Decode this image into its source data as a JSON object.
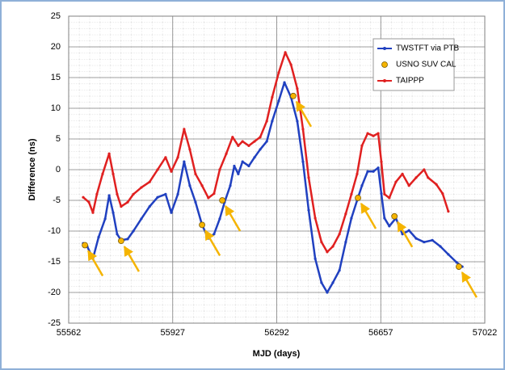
{
  "chart_data": {
    "type": "line",
    "xlabel": "MJD (days)",
    "ylabel": "Difference (ns)",
    "xlim": [
      55562,
      57022
    ],
    "xticks": [
      55562,
      55927,
      56292,
      56657,
      57022
    ],
    "ylim": [
      -25,
      25
    ],
    "yticks": [
      -25,
      -20,
      -15,
      -10,
      -5,
      0,
      5,
      10,
      15,
      20,
      25
    ],
    "grid": true,
    "legend": "upper right",
    "series": [
      {
        "name": "TWSTFT via PTB",
        "color": "#2040c0",
        "style": "line",
        "x": [
          55613,
          55627,
          55647,
          55667,
          55690,
          55704,
          55718,
          55732,
          55746,
          55769,
          55789,
          55817,
          55846,
          55874,
          55902,
          55922,
          55945,
          55967,
          55987,
          56007,
          56030,
          56052,
          56072,
          56092,
          56109,
          56129,
          56143,
          56157,
          56172,
          56194,
          56214,
          56234,
          56257,
          56276,
          56299,
          56319,
          56342,
          56364,
          56384,
          56404,
          56427,
          56449,
          56469,
          56489,
          56512,
          56534,
          56554,
          56574,
          56591,
          56611,
          56631,
          56648,
          56659,
          56670,
          56687,
          56710,
          56733,
          56756,
          56781,
          56809,
          56838,
          56866,
          56894,
          56923,
          56943
        ],
        "values": [
          -12,
          -12.5,
          -14.5,
          -11,
          -8,
          -4.2,
          -7,
          -10.5,
          -11.5,
          -11.3,
          -10,
          -8,
          -6,
          -4.5,
          -4,
          -7,
          -4,
          1.3,
          -2.6,
          -5.3,
          -9,
          -11.2,
          -10.5,
          -8,
          -5.3,
          -2.6,
          0.6,
          -0.7,
          1.3,
          0.6,
          2,
          3.3,
          4.6,
          7.9,
          11.2,
          14.2,
          11.8,
          7.9,
          1.3,
          -6.6,
          -14.5,
          -18.4,
          -20,
          -18.4,
          -16.4,
          -11.8,
          -7.9,
          -5,
          -2.6,
          -0.3,
          -0.3,
          0.3,
          -3.9,
          -7.9,
          -9.2,
          -7.9,
          -10.5,
          -9.9,
          -11.2,
          -11.8,
          -11.5,
          -12.5,
          -13.8,
          -15.1,
          -15.8
        ]
      },
      {
        "name": "USNO SUV CAL",
        "color": "#f5b400",
        "style": "points",
        "x": [
          55619,
          55746,
          56030,
          56101,
          56350,
          56577,
          56705,
          56931
        ],
        "values": [
          -12.3,
          -11.6,
          -9,
          -5,
          12,
          -4.6,
          -7.6,
          -15.8
        ]
      },
      {
        "name": "TAIPPP",
        "color": "#e02020",
        "style": "line",
        "x": [
          55613,
          55633,
          55647,
          55661,
          55681,
          55704,
          55718,
          55732,
          55746,
          55769,
          55789,
          55817,
          55846,
          55874,
          55902,
          55922,
          55945,
          55967,
          55987,
          56007,
          56030,
          56052,
          56072,
          56092,
          56115,
          56137,
          56157,
          56172,
          56194,
          56214,
          56234,
          56257,
          56276,
          56299,
          56322,
          56342,
          56364,
          56384,
          56404,
          56427,
          56449,
          56469,
          56489,
          56512,
          56534,
          56554,
          56574,
          56591,
          56611,
          56631,
          56648,
          56659,
          56670,
          56687,
          56710,
          56733,
          56756,
          56781,
          56809,
          56823,
          56852,
          56874,
          56894
        ],
        "values": [
          -4.5,
          -5.3,
          -7,
          -4,
          -0.7,
          2.6,
          -0.7,
          -4,
          -6,
          -5.3,
          -4,
          -2.9,
          -2,
          0,
          2,
          -0.3,
          2,
          6.6,
          3.3,
          -0.7,
          -2.6,
          -4.6,
          -3.9,
          0,
          2.6,
          5.3,
          3.9,
          4.6,
          3.9,
          4.6,
          5.3,
          7.9,
          11.8,
          15.8,
          19.1,
          17.1,
          13.2,
          6.6,
          -1.3,
          -7.9,
          -11.8,
          -13.4,
          -12.5,
          -10.5,
          -7.2,
          -4,
          -0.7,
          3.9,
          5.9,
          5.5,
          5.9,
          1.3,
          -4,
          -4.6,
          -2,
          -0.7,
          -2.6,
          -1.3,
          0,
          -1.3,
          -2.4,
          -3.9,
          -6.8
        ]
      }
    ]
  }
}
